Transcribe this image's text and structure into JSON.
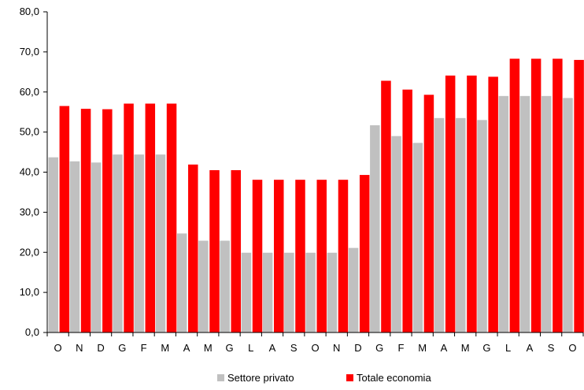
{
  "chart_data": {
    "type": "bar",
    "categories": [
      "O",
      "N",
      "D",
      "G",
      "F",
      "M",
      "A",
      "M",
      "G",
      "L",
      "A",
      "S",
      "O",
      "N",
      "D",
      "G",
      "F",
      "M",
      "A",
      "M",
      "G",
      "L",
      "A",
      "S",
      "O"
    ],
    "series": [
      {
        "name": "Settore privato",
        "color": "#c0c0c0",
        "values": [
          43.7,
          42.7,
          42.4,
          44.4,
          44.4,
          44.4,
          24.7,
          22.9,
          22.9,
          19.9,
          19.9,
          19.9,
          19.9,
          19.9,
          21.1,
          51.7,
          49.0,
          47.3,
          53.5,
          53.5,
          53.0,
          59.0,
          59.0,
          59.0,
          58.5
        ]
      },
      {
        "name": "Totale economia",
        "color": "#ff0000",
        "values": [
          56.5,
          55.8,
          55.7,
          57.1,
          57.1,
          57.1,
          41.9,
          40.5,
          40.5,
          38.1,
          38.1,
          38.1,
          38.1,
          38.1,
          39.3,
          62.8,
          60.6,
          59.3,
          64.1,
          64.1,
          63.8,
          68.3,
          68.3,
          68.3,
          68.0
        ]
      }
    ],
    "ylim": [
      0,
      80
    ],
    "yticks": [
      "0,0",
      "10,0",
      "20,0",
      "30,0",
      "40,0",
      "50,0",
      "60,0",
      "70,0",
      "80,0"
    ],
    "title": "",
    "xlabel": "",
    "ylabel": "",
    "legend_position": "bottom-center",
    "grid": false
  }
}
